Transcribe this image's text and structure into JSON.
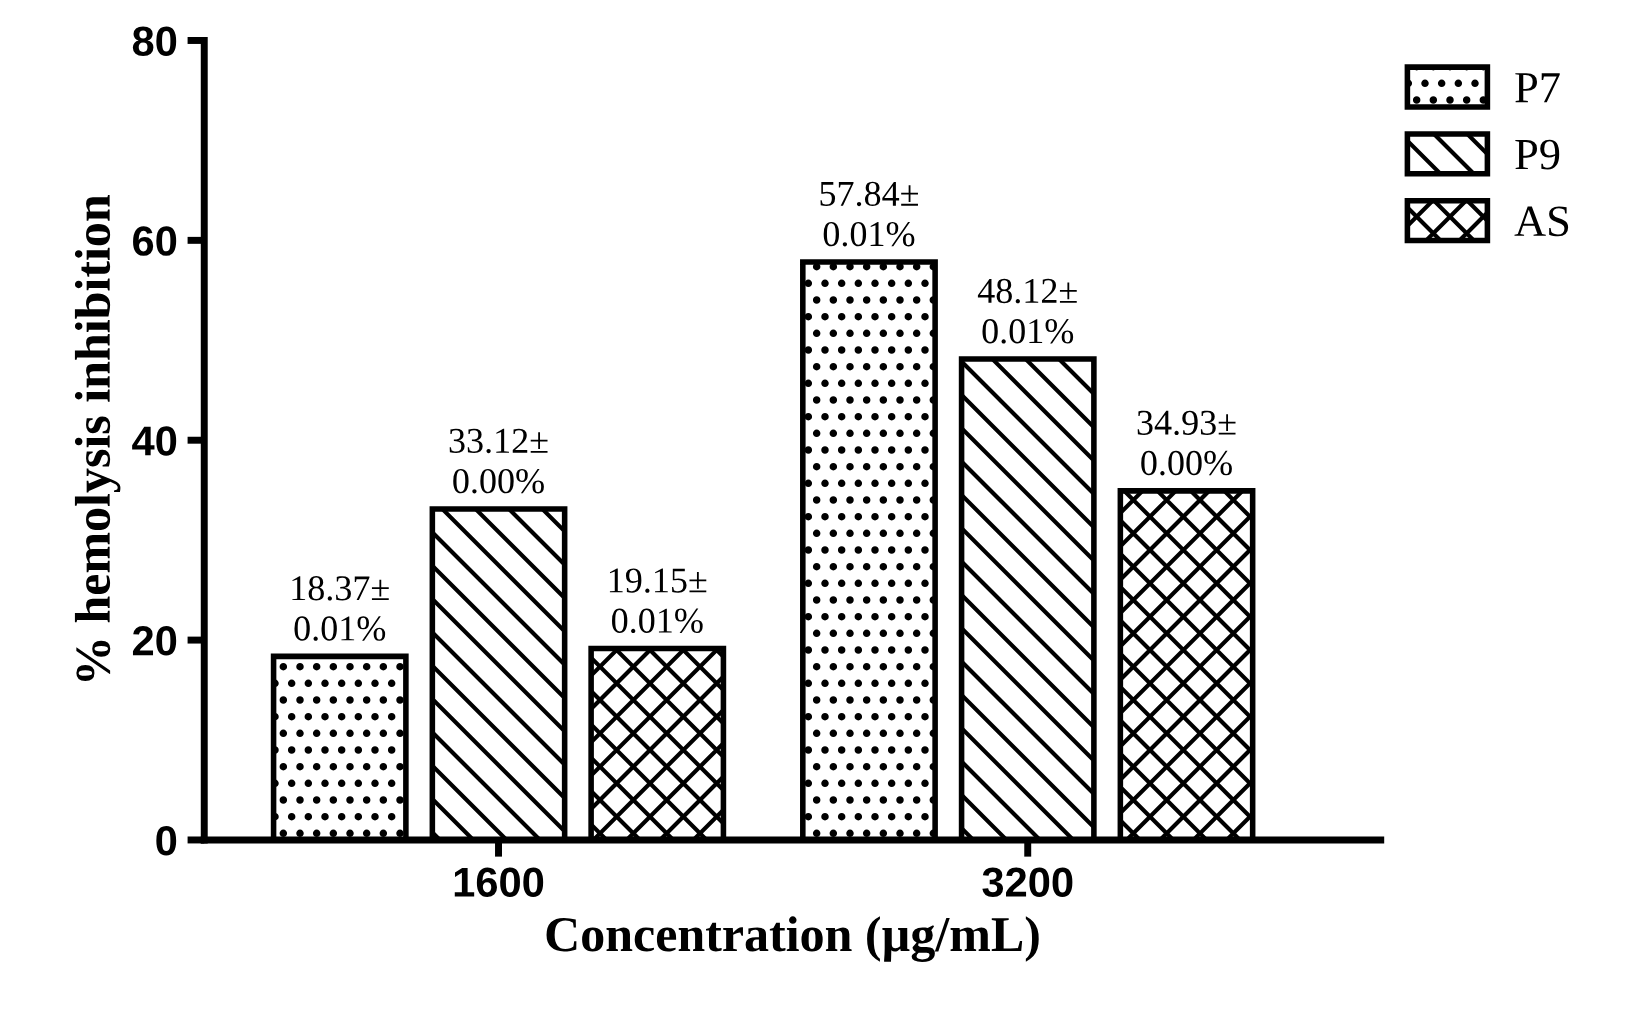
{
  "chart_data": {
    "type": "bar",
    "xlabel": "Concentration (µg/mL)",
    "ylabel": "% hemolysis inhibition",
    "categories": [
      "1600",
      "3200"
    ],
    "series": [
      {
        "name": "P7",
        "color": "#000000",
        "values": [
          18.37,
          57.84
        ],
        "value_labels": [
          "18.37±\n0.01%",
          "57.84±\n0.01%"
        ]
      },
      {
        "name": "P9",
        "color": "#000000",
        "values": [
          33.12,
          48.12
        ],
        "value_labels": [
          "33.12±\n0.00%",
          "48.12±\n0.01%"
        ]
      },
      {
        "name": "AS",
        "color": "#000000",
        "values": [
          19.15,
          34.93
        ],
        "value_labels": [
          "19.15±\n0.01%",
          "34.93±\n0.00%"
        ]
      }
    ],
    "ylim": [
      0,
      80
    ],
    "yticks": [
      0,
      20,
      40,
      60,
      80
    ],
    "grid": false,
    "legend": "top right"
  }
}
